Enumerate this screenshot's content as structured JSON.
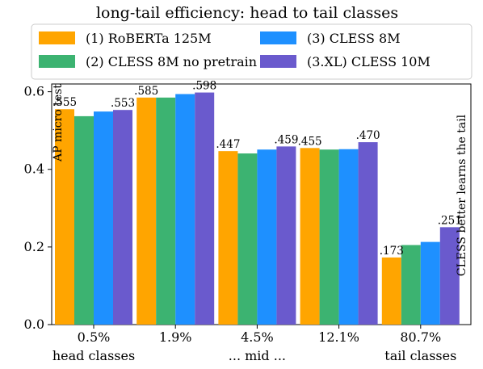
{
  "chart_data": {
    "type": "bar",
    "title": "long-tail efficiency: head to tail classes",
    "ylabel": "AP micro test",
    "right_label": "CLESS better learns the tail",
    "ylim": [
      0,
      0.62
    ],
    "yticks": [
      "0.0",
      "0.2",
      "0.4",
      "0.6"
    ],
    "ytick_values": [
      0.0,
      0.2,
      0.4,
      0.6
    ],
    "categories": [
      "0.5%",
      "1.9%",
      "4.5%",
      "12.1%",
      "80.7%"
    ],
    "category_sublabels": [
      "head classes",
      "",
      "... mid ...",
      "",
      "tail classes"
    ],
    "legend_position": "top-center",
    "series": [
      {
        "name": "(1) RoBERTa 125M",
        "color": "#ffa500",
        "values": [
          0.555,
          0.585,
          0.447,
          0.455,
          0.173
        ]
      },
      {
        "name": "(2) CLESS 8M no pretrain",
        "color": "#3cb371",
        "values": [
          0.537,
          0.585,
          0.441,
          0.451,
          0.205
        ]
      },
      {
        "name": "(3) CLESS 8M",
        "color": "#1e90ff",
        "values": [
          0.549,
          0.594,
          0.451,
          0.452,
          0.213
        ]
      },
      {
        "name": "(3.XL) CLESS 10M",
        "color": "#6a5acd",
        "values": [
          0.553,
          0.598,
          0.459,
          0.47,
          0.251
        ]
      }
    ],
    "data_labels": [
      {
        "category": 0,
        "series": 0,
        "text": ".555"
      },
      {
        "category": 0,
        "series": 3,
        "text": ".553"
      },
      {
        "category": 1,
        "series": 0,
        "text": ".585"
      },
      {
        "category": 1,
        "series": 3,
        "text": ".598"
      },
      {
        "category": 2,
        "series": 0,
        "text": ".447"
      },
      {
        "category": 2,
        "series": 3,
        "text": ".459"
      },
      {
        "category": 3,
        "series": 0,
        "text": ".455"
      },
      {
        "category": 3,
        "series": 3,
        "text": ".470"
      },
      {
        "category": 4,
        "series": 0,
        "text": ".173"
      },
      {
        "category": 4,
        "series": 3,
        "text": ".251"
      }
    ]
  }
}
